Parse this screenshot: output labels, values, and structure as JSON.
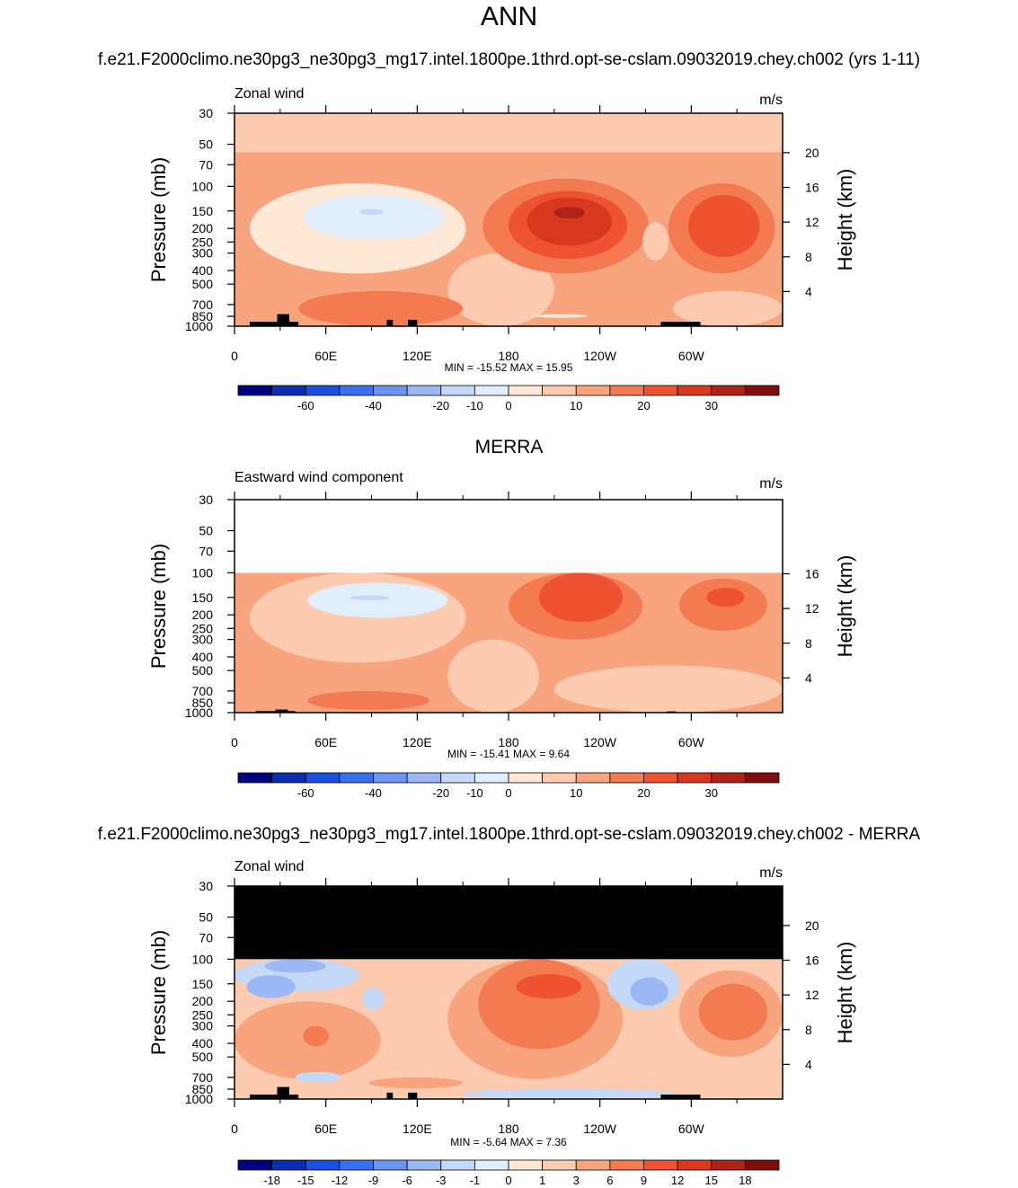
{
  "page": {
    "title": "ANN",
    "case_title": "f.e21.F2000climo.ne30pg3_ne30pg3_mg17.intel.1800pe.1thrd.opt-se-cslam.09032019.chey.ch002 (yrs 1-11)",
    "obs_title": "MERRA",
    "diff_title": "f.e21.F2000climo.ne30pg3_ne30pg3_mg17.intel.1800pe.1thrd.opt-se-cslam.09032019.chey.ch002 - MERRA"
  },
  "chart_data": [
    {
      "type": "heatmap",
      "left_label": "Zonal wind",
      "right_label": "m/s",
      "ylabel": "Pressure (mb)",
      "ylabel_right": "Height (km)",
      "x_ticks": [
        "0",
        "60E",
        "120E",
        "180",
        "120W",
        "60W"
      ],
      "x_tick_lon": [
        0,
        60,
        120,
        180,
        240,
        300
      ],
      "xlim": [
        0,
        360
      ],
      "y_ticks": [
        "30",
        "50",
        "70",
        "100",
        "150",
        "200",
        "250",
        "300",
        "400",
        "500",
        "700",
        "850",
        "1000"
      ],
      "y_tick_values": [
        30,
        50,
        70,
        100,
        150,
        200,
        250,
        300,
        400,
        500,
        700,
        850,
        1000
      ],
      "ylim": [
        1000,
        30
      ],
      "y_scale": "log",
      "height_ticks": [
        "20",
        "16",
        "12",
        "8",
        "4"
      ],
      "height_values": [
        20,
        16,
        12,
        8,
        4
      ],
      "stats": "MIN = -15.52  MAX =  15.95",
      "min": -15.52,
      "max": 15.95,
      "colorbar": {
        "colors": [
          "#000080",
          "#0b2eb0",
          "#1b4fe0",
          "#3a6ff0",
          "#6c95f2",
          "#9bb8f5",
          "#c4d9f8",
          "#e1eefb",
          "#ffe8d6",
          "#fccbb0",
          "#f8a47e",
          "#f47a52",
          "#ee5230",
          "#d9381f",
          "#ad2416",
          "#7f0d0d"
        ],
        "labels": [
          "-60",
          "-40",
          "-20",
          "-10",
          "0",
          "10",
          "20",
          "30"
        ],
        "label_after_index": [
          1,
          3,
          5,
          6,
          7,
          9,
          11,
          13
        ]
      },
      "regions": [
        {
          "name": "stratosphere-easterly",
          "lon": [
            0,
            360
          ],
          "p": [
            30,
            57
          ],
          "value": -5
        },
        {
          "name": "tropospheric-westerly-background",
          "lon": [
            0,
            360
          ],
          "p": [
            57,
            1000
          ],
          "value": 3
        },
        {
          "name": "indian-ocean-easterly",
          "lon": [
            10,
            152
          ],
          "p": [
            95,
            420
          ],
          "value": -6
        },
        {
          "name": "indian-ocean-easterly-core",
          "lon": [
            45,
            138
          ],
          "p": [
            115,
            240
          ],
          "value": -12
        },
        {
          "name": "indian-ocean-easterly-max",
          "lon": [
            82,
            98
          ],
          "p": [
            145,
            160
          ],
          "value": -18
        },
        {
          "name": "maritime-easterly-tongue",
          "lon": [
            140,
            210
          ],
          "p": [
            300,
            1000
          ],
          "value": -4
        },
        {
          "name": "central-pacific-jet",
          "lon": [
            163,
            272
          ],
          "p": [
            88,
            420
          ],
          "value": 7
        },
        {
          "name": "central-pacific-jet-core",
          "lon": [
            180,
            258
          ],
          "p": [
            108,
            330
          ],
          "value": 12
        },
        {
          "name": "central-pacific-jet-inner",
          "lon": [
            192,
            248
          ],
          "p": [
            120,
            265
          ],
          "value": 17
        },
        {
          "name": "central-pacific-jet-max",
          "lon": [
            210,
            230
          ],
          "p": [
            140,
            170
          ],
          "value": 22
        },
        {
          "name": "atlantic-jet",
          "lon": [
            285,
            355
          ],
          "p": [
            95,
            420
          ],
          "value": 7
        },
        {
          "name": "atlantic-jet-core",
          "lon": [
            298,
            345
          ],
          "p": [
            115,
            320
          ],
          "value": 12
        },
        {
          "name": "americas-easterly-patch",
          "lon": [
            268,
            285
          ],
          "p": [
            180,
            340
          ],
          "value": -4
        },
        {
          "name": "lower-atlantic-easterly",
          "lon": [
            288,
            360
          ],
          "p": [
            560,
            1000
          ],
          "value": -4
        },
        {
          "name": "lower-indian-westerly",
          "lon": [
            42,
            150
          ],
          "p": [
            560,
            1000
          ],
          "value": 7
        },
        {
          "name": "lower-pacific-easterly-streak",
          "lon": [
            196,
            232
          ],
          "p": [
            820,
            870
          ],
          "value": -6
        }
      ],
      "topography": [
        {
          "lon": [
            10,
            42
          ],
          "p": 930
        },
        {
          "lon": [
            28,
            36
          ],
          "p": 820
        },
        {
          "lon": [
            100,
            104
          ],
          "p": 900
        },
        {
          "lon": [
            114,
            120
          ],
          "p": 900
        },
        {
          "lon": [
            280,
            306
          ],
          "p": 930
        }
      ]
    },
    {
      "type": "heatmap",
      "left_label": "Eastward wind component",
      "right_label": "m/s",
      "ylabel": "Pressure (mb)",
      "ylabel_right": "Height (km)",
      "x_ticks": [
        "0",
        "60E",
        "120E",
        "180",
        "120W",
        "60W"
      ],
      "x_tick_lon": [
        0,
        60,
        120,
        180,
        240,
        300
      ],
      "xlim": [
        0,
        360
      ],
      "y_ticks": [
        "30",
        "50",
        "70",
        "100",
        "150",
        "200",
        "250",
        "300",
        "400",
        "500",
        "700",
        "850",
        "1000"
      ],
      "y_tick_values": [
        30,
        50,
        70,
        100,
        150,
        200,
        250,
        300,
        400,
        500,
        700,
        850,
        1000
      ],
      "ylim": [
        1000,
        30
      ],
      "y_scale": "log",
      "height_ticks": [
        "16",
        "12",
        "8",
        "4"
      ],
      "height_values": [
        16,
        12,
        8,
        4
      ],
      "stats": "MIN = -15.41  MAX =  9.64",
      "min": -15.41,
      "max": 9.64,
      "data_top_p": 100,
      "colorbar": {
        "colors": [
          "#000080",
          "#0b2eb0",
          "#1b4fe0",
          "#3a6ff0",
          "#6c95f2",
          "#9bb8f5",
          "#c4d9f8",
          "#e1eefb",
          "#ffe8d6",
          "#fccbb0",
          "#f8a47e",
          "#f47a52",
          "#ee5230",
          "#d9381f",
          "#ad2416",
          "#7f0d0d"
        ],
        "labels": [
          "-60",
          "-40",
          "-20",
          "-10",
          "0",
          "10",
          "20",
          "30"
        ],
        "label_after_index": [
          1,
          3,
          5,
          6,
          7,
          9,
          11,
          13
        ]
      },
      "regions": [
        {
          "name": "background-westerly",
          "lon": [
            0,
            360
          ],
          "p": [
            100,
            1000
          ],
          "value": 3
        },
        {
          "name": "indian-ocean-easterly",
          "lon": [
            10,
            152
          ],
          "p": [
            100,
            440
          ],
          "value": -5
        },
        {
          "name": "indian-ocean-easterly-core",
          "lon": [
            48,
            140
          ],
          "p": [
            118,
            210
          ],
          "value": -12
        },
        {
          "name": "indian-ocean-easterly-max",
          "lon": [
            75,
            102
          ],
          "p": [
            145,
            157
          ],
          "value": -17
        },
        {
          "name": "pacific-easterly-column",
          "lon": [
            140,
            200
          ],
          "p": [
            300,
            1000
          ],
          "value": -4
        },
        {
          "name": "lower-atlantic-easterly",
          "lon": [
            210,
            360
          ],
          "p": [
            460,
            1000
          ],
          "value": -4
        },
        {
          "name": "central-pacific-jet",
          "lon": [
            180,
            268
          ],
          "p": [
            100,
            300
          ],
          "value": 7
        },
        {
          "name": "central-pacific-jet-core",
          "lon": [
            200,
            255
          ],
          "p": [
            100,
            225
          ],
          "value": 12
        },
        {
          "name": "atlantic-jet",
          "lon": [
            292,
            350
          ],
          "p": [
            110,
            260
          ],
          "value": 7
        },
        {
          "name": "atlantic-jet-core",
          "lon": [
            310,
            335
          ],
          "p": [
            128,
            175
          ],
          "value": 12
        },
        {
          "name": "lower-indian-westerly",
          "lon": [
            48,
            128
          ],
          "p": [
            700,
            960
          ],
          "value": 7
        }
      ],
      "topography": [
        {
          "lon": [
            14,
            40
          ],
          "p": 975
        },
        {
          "lon": [
            27,
            35
          ],
          "p": 950
        },
        {
          "lon": [
            284,
            290
          ],
          "p": 980
        }
      ]
    },
    {
      "type": "heatmap",
      "left_label": "Zonal wind",
      "right_label": "m/s",
      "ylabel": "Pressure (mb)",
      "ylabel_right": "Height (km)",
      "x_ticks": [
        "0",
        "60E",
        "120E",
        "180",
        "120W",
        "60W"
      ],
      "x_tick_lon": [
        0,
        60,
        120,
        180,
        240,
        300
      ],
      "xlim": [
        0,
        360
      ],
      "y_ticks": [
        "30",
        "50",
        "70",
        "100",
        "150",
        "200",
        "250",
        "300",
        "400",
        "500",
        "700",
        "850",
        "1000"
      ],
      "y_tick_values": [
        30,
        50,
        70,
        100,
        150,
        200,
        250,
        300,
        400,
        500,
        700,
        850,
        1000
      ],
      "ylim": [
        1000,
        30
      ],
      "y_scale": "log",
      "height_ticks": [
        "20",
        "16",
        "12",
        "8",
        "4"
      ],
      "height_values": [
        20,
        16,
        12,
        8,
        4
      ],
      "stats": "MIN = -5.64  MAX =  7.36",
      "min": -5.64,
      "max": 7.36,
      "missing_above_p": 100,
      "colorbar": {
        "colors": [
          "#000080",
          "#0b2eb0",
          "#1b4fe0",
          "#3a6ff0",
          "#6c95f2",
          "#9bb8f5",
          "#c4d9f8",
          "#e1eefb",
          "#ffe8d6",
          "#fccbb0",
          "#f8a47e",
          "#f47a52",
          "#ee5230",
          "#d9381f",
          "#ad2416",
          "#7f0d0d"
        ],
        "labels": [
          "-18",
          "-15",
          "-12",
          "-9",
          "-6",
          "-3",
          "-1",
          "0",
          "1",
          "3",
          "6",
          "9",
          "12",
          "15",
          "18"
        ],
        "label_after_index": [
          0,
          1,
          2,
          3,
          4,
          5,
          6,
          7,
          8,
          9,
          10,
          11,
          12,
          13,
          14
        ]
      },
      "regions": [
        {
          "name": "background-positive",
          "lon": [
            0,
            360
          ],
          "p": [
            100,
            1000
          ],
          "value": 1.5
        },
        {
          "name": "upper-west-negative",
          "lon": [
            0,
            82
          ],
          "p": [
            100,
            170
          ],
          "value": -2
        },
        {
          "name": "upper-west-negative-core",
          "lon": [
            8,
            40
          ],
          "p": [
            130,
            190
          ],
          "value": -4
        },
        {
          "name": "upper-west-negative-east",
          "lon": [
            20,
            60
          ],
          "p": [
            100,
            125
          ],
          "value": -4
        },
        {
          "name": "west-positive-block",
          "lon": [
            0,
            96
          ],
          "p": [
            200,
            720
          ],
          "value": 4
        },
        {
          "name": "west-positive-core",
          "lon": [
            45,
            62
          ],
          "p": [
            300,
            420
          ],
          "value": 7
        },
        {
          "name": "indian-negative-pocket",
          "lon": [
            84,
            98
          ],
          "p": [
            160,
            230
          ],
          "value": -2
        },
        {
          "name": "lower-west-negative",
          "lon": [
            40,
            70
          ],
          "p": [
            640,
            760
          ],
          "value": -2
        },
        {
          "name": "pacific-positive",
          "lon": [
            140,
            255
          ],
          "p": [
            100,
            720
          ],
          "value": 4
        },
        {
          "name": "pacific-positive-core",
          "lon": [
            160,
            240
          ],
          "p": [
            100,
            440
          ],
          "value": 7
        },
        {
          "name": "pacific-positive-max",
          "lon": [
            185,
            228
          ],
          "p": [
            128,
            192
          ],
          "value": 10
        },
        {
          "name": "americas-negative",
          "lon": [
            245,
            292
          ],
          "p": [
            100,
            230
          ],
          "value": -2
        },
        {
          "name": "americas-negative-core",
          "lon": [
            260,
            285
          ],
          "p": [
            135,
            215
          ],
          "value": -4
        },
        {
          "name": "atlantic-positive",
          "lon": [
            292,
            360
          ],
          "p": [
            120,
            500
          ],
          "value": 4
        },
        {
          "name": "atlantic-positive-core",
          "lon": [
            305,
            350
          ],
          "p": [
            150,
            380
          ],
          "value": 7
        },
        {
          "name": "lower-indian-band",
          "lon": [
            88,
            150
          ],
          "p": [
            700,
            840
          ],
          "value": 4
        },
        {
          "name": "lower-pacific-negative",
          "lon": [
            150,
            290
          ],
          "p": [
            850,
            1000
          ],
          "value": -1.5
        },
        {
          "name": "lower-pacific-negative-core",
          "lon": [
            170,
            270
          ],
          "p": [
            900,
            990
          ],
          "value": -3
        },
        {
          "name": "east-lower-positive",
          "lon": [
            270,
            360
          ],
          "p": [
            700,
            850
          ],
          "value": 1.5
        }
      ],
      "topography": [
        {
          "lon": [
            10,
            42
          ],
          "p": 930
        },
        {
          "lon": [
            28,
            36
          ],
          "p": 820
        },
        {
          "lon": [
            100,
            104
          ],
          "p": 900
        },
        {
          "lon": [
            114,
            120
          ],
          "p": 900
        },
        {
          "lon": [
            280,
            306
          ],
          "p": 930
        }
      ]
    }
  ]
}
